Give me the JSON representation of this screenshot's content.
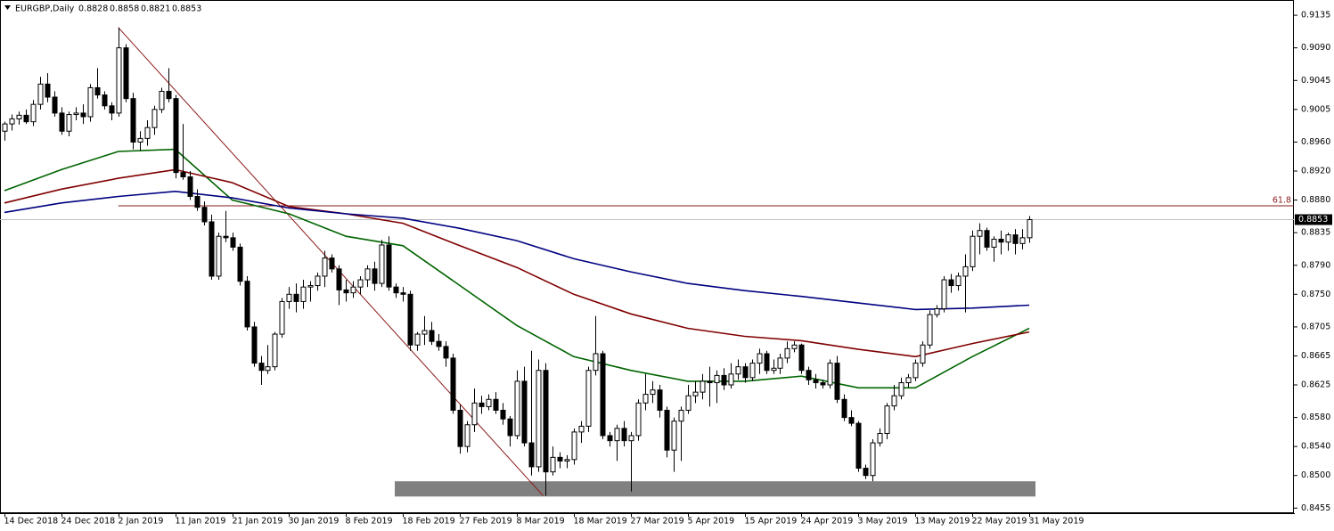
{
  "chart_data": {
    "type": "candlestick",
    "title": "EURGBP,Daily",
    "categories": [
      "14 Dec 2018",
      null,
      null,
      null,
      null,
      null,
      null,
      null,
      "24 Dec 2018",
      null,
      null,
      null,
      null,
      null,
      null,
      null,
      "2 Jan 2019",
      null,
      null,
      null,
      null,
      null,
      null,
      null,
      "11 Jan 2019",
      null,
      null,
      null,
      null,
      null,
      null,
      null,
      "21 Jan 2019",
      null,
      null,
      null,
      null,
      null,
      null,
      null,
      "30 Jan 2019",
      null,
      null,
      null,
      null,
      null,
      null,
      null,
      "8 Feb 2019",
      null,
      null,
      null,
      null,
      null,
      null,
      null,
      "18 Feb 2019",
      null,
      null,
      null,
      null,
      null,
      null,
      null,
      "27 Feb 2019",
      null,
      null,
      null,
      null,
      null,
      null,
      null,
      "8 Mar 2019",
      null,
      null,
      null,
      null,
      null,
      null,
      null,
      "18 Mar 2019",
      null,
      null,
      null,
      null,
      null,
      null,
      null,
      "27 Mar 2019",
      null,
      null,
      null,
      null,
      null,
      null,
      null,
      "5 Apr 2019",
      null,
      null,
      null,
      null,
      null,
      null,
      null,
      "15 Apr 2019",
      null,
      null,
      null,
      null,
      null,
      null,
      null,
      "24 Apr 2019",
      null,
      null,
      null,
      null,
      null,
      null,
      null,
      "3 May 2019",
      null,
      null,
      null,
      null,
      null,
      null,
      null,
      "13 May 2019",
      null,
      null,
      null,
      null,
      null,
      null,
      null,
      "22 May 2019",
      null,
      null,
      null,
      null,
      null,
      null,
      null,
      "31 May 2019"
    ],
    "ohlc": [
      [
        0.8975,
        0.8988,
        0.8962,
        0.8985
      ],
      [
        0.8985,
        0.8998,
        0.8976,
        0.8992
      ],
      [
        0.8992,
        0.9002,
        0.8984,
        0.8997
      ],
      [
        0.8997,
        0.9005,
        0.8985,
        0.8988
      ],
      [
        0.8988,
        0.9018,
        0.8982,
        0.9012
      ],
      [
        0.9012,
        0.905,
        0.9005,
        0.904
      ],
      [
        0.904,
        0.9055,
        0.9015,
        0.9022
      ],
      [
        0.9022,
        0.903,
        0.8995,
        0.9
      ],
      [
        0.9,
        0.9008,
        0.897,
        0.8975
      ],
      [
        0.8975,
        0.9002,
        0.8968,
        0.8998
      ],
      [
        0.8998,
        0.9008,
        0.899,
        0.9
      ],
      [
        0.9,
        0.9012,
        0.8985,
        0.8995
      ],
      [
        0.8995,
        0.904,
        0.8988,
        0.9035
      ],
      [
        0.9035,
        0.9062,
        0.902,
        0.9025
      ],
      [
        0.9025,
        0.903,
        0.9005,
        0.901
      ],
      [
        0.901,
        0.9015,
        0.899,
        0.9
      ],
      [
        0.9,
        0.9118,
        0.8995,
        0.909
      ],
      [
        0.909,
        0.9095,
        0.9015,
        0.902
      ],
      [
        0.902,
        0.9028,
        0.895,
        0.896
      ],
      [
        0.896,
        0.8975,
        0.8948,
        0.8965
      ],
      [
        0.8965,
        0.899,
        0.8955,
        0.898
      ],
      [
        0.898,
        0.901,
        0.897,
        0.9005
      ],
      [
        0.9005,
        0.9035,
        0.9,
        0.903
      ],
      [
        0.903,
        0.9062,
        0.9015,
        0.902
      ],
      [
        0.902,
        0.9025,
        0.891,
        0.8918
      ],
      [
        0.8918,
        0.8985,
        0.8908,
        0.8912
      ],
      [
        0.8912,
        0.892,
        0.888,
        0.8885
      ],
      [
        0.8885,
        0.8895,
        0.8865,
        0.887
      ],
      [
        0.887,
        0.8878,
        0.8845,
        0.885
      ],
      [
        0.885,
        0.886,
        0.877,
        0.8775
      ],
      [
        0.8775,
        0.8835,
        0.877,
        0.883
      ],
      [
        0.883,
        0.8865,
        0.8822,
        0.8828
      ],
      [
        0.8828,
        0.8835,
        0.881,
        0.8815
      ],
      [
        0.8815,
        0.882,
        0.8762,
        0.8768
      ],
      [
        0.8768,
        0.8775,
        0.87,
        0.8705
      ],
      [
        0.8705,
        0.8712,
        0.865,
        0.8655
      ],
      [
        0.8655,
        0.8665,
        0.8625,
        0.8645
      ],
      [
        0.8645,
        0.868,
        0.864,
        0.865
      ],
      [
        0.865,
        0.8698,
        0.8645,
        0.8695
      ],
      [
        0.8695,
        0.8745,
        0.869,
        0.874
      ],
      [
        0.874,
        0.876,
        0.873,
        0.875
      ],
      [
        0.875,
        0.8765,
        0.8725,
        0.874
      ],
      [
        0.874,
        0.877,
        0.873,
        0.876
      ],
      [
        0.876,
        0.8768,
        0.874,
        0.8762
      ],
      [
        0.8762,
        0.878,
        0.8755,
        0.8775
      ],
      [
        0.8775,
        0.881,
        0.876,
        0.88
      ],
      [
        0.88,
        0.8805,
        0.878,
        0.8785
      ],
      [
        0.8785,
        0.879,
        0.8735,
        0.8756
      ],
      [
        0.8756,
        0.877,
        0.874,
        0.8752
      ],
      [
        0.8752,
        0.8768,
        0.8745,
        0.876
      ],
      [
        0.876,
        0.8775,
        0.875,
        0.877
      ],
      [
        0.877,
        0.879,
        0.876,
        0.8785
      ],
      [
        0.8785,
        0.8795,
        0.8755,
        0.8765
      ],
      [
        0.8765,
        0.8825,
        0.876,
        0.8818
      ],
      [
        0.8818,
        0.883,
        0.8755,
        0.876
      ],
      [
        0.876,
        0.8765,
        0.8745,
        0.8752
      ],
      [
        0.8752,
        0.876,
        0.874,
        0.875
      ],
      [
        0.875,
        0.8755,
        0.8672,
        0.868
      ],
      [
        0.868,
        0.8698,
        0.8672,
        0.8695
      ],
      [
        0.8695,
        0.872,
        0.868,
        0.87
      ],
      [
        0.87,
        0.8712,
        0.868,
        0.8685
      ],
      [
        0.8685,
        0.8695,
        0.8672,
        0.8678
      ],
      [
        0.8678,
        0.8685,
        0.865,
        0.8662
      ],
      [
        0.8662,
        0.8668,
        0.8585,
        0.859
      ],
      [
        0.859,
        0.8598,
        0.853,
        0.854
      ],
      [
        0.854,
        0.8575,
        0.8532,
        0.857
      ],
      [
        0.857,
        0.862,
        0.856,
        0.86
      ],
      [
        0.86,
        0.861,
        0.8585,
        0.8595
      ],
      [
        0.8595,
        0.8612,
        0.859,
        0.8605
      ],
      [
        0.8605,
        0.8615,
        0.8585,
        0.859
      ],
      [
        0.859,
        0.86,
        0.857,
        0.8578
      ],
      [
        0.8578,
        0.8582,
        0.854,
        0.8555
      ],
      [
        0.8555,
        0.8645,
        0.855,
        0.863
      ],
      [
        0.863,
        0.865,
        0.854,
        0.8545
      ],
      [
        0.8545,
        0.8672,
        0.85,
        0.8512
      ],
      [
        0.8512,
        0.866,
        0.8505,
        0.8645
      ],
      [
        0.8645,
        0.8655,
        0.8472,
        0.8505
      ],
      [
        0.8505,
        0.854,
        0.85,
        0.8525
      ],
      [
        0.8525,
        0.8532,
        0.851,
        0.852
      ],
      [
        0.852,
        0.8528,
        0.851,
        0.8522
      ],
      [
        0.8522,
        0.8565,
        0.8515,
        0.856
      ],
      [
        0.856,
        0.8575,
        0.8545,
        0.8568
      ],
      [
        0.8568,
        0.865,
        0.856,
        0.8645
      ],
      [
        0.8645,
        0.872,
        0.8638,
        0.8668
      ],
      [
        0.8668,
        0.8672,
        0.855,
        0.8555
      ],
      [
        0.8555,
        0.856,
        0.854,
        0.8548
      ],
      [
        0.8548,
        0.857,
        0.852,
        0.8565
      ],
      [
        0.8565,
        0.8575,
        0.854,
        0.8548
      ],
      [
        0.8548,
        0.856,
        0.8478,
        0.8555
      ],
      [
        0.8555,
        0.8605,
        0.8548,
        0.86
      ],
      [
        0.86,
        0.864,
        0.859,
        0.8612
      ],
      [
        0.8612,
        0.863,
        0.86,
        0.8618
      ],
      [
        0.8618,
        0.8625,
        0.858,
        0.859
      ],
      [
        0.859,
        0.8595,
        0.8525,
        0.8535
      ],
      [
        0.8535,
        0.858,
        0.8505,
        0.8575
      ],
      [
        0.8575,
        0.8595,
        0.852,
        0.859
      ],
      [
        0.859,
        0.8625,
        0.8585,
        0.861
      ],
      [
        0.861,
        0.863,
        0.86,
        0.8615
      ],
      [
        0.8615,
        0.864,
        0.8605,
        0.863
      ],
      [
        0.863,
        0.865,
        0.8595,
        0.8628
      ],
      [
        0.8628,
        0.8645,
        0.86,
        0.8638
      ],
      [
        0.8638,
        0.8648,
        0.8618,
        0.8625
      ],
      [
        0.8625,
        0.8655,
        0.862,
        0.864
      ],
      [
        0.864,
        0.866,
        0.8632,
        0.865
      ],
      [
        0.865,
        0.8655,
        0.8628,
        0.8635
      ],
      [
        0.8635,
        0.866,
        0.863,
        0.8655
      ],
      [
        0.8655,
        0.8675,
        0.864,
        0.8668
      ],
      [
        0.8668,
        0.8672,
        0.864,
        0.8645
      ],
      [
        0.8645,
        0.866,
        0.864,
        0.8648
      ],
      [
        0.8648,
        0.8668,
        0.864,
        0.8662
      ],
      [
        0.8662,
        0.8685,
        0.8655,
        0.8675
      ],
      [
        0.8675,
        0.8685,
        0.867,
        0.868
      ],
      [
        0.868,
        0.8682,
        0.864,
        0.8645
      ],
      [
        0.8645,
        0.865,
        0.8625,
        0.8632
      ],
      [
        0.8632,
        0.864,
        0.862,
        0.8628
      ],
      [
        0.8628,
        0.8632,
        0.862,
        0.8625
      ],
      [
        0.8625,
        0.866,
        0.862,
        0.8655
      ],
      [
        0.8655,
        0.8665,
        0.86,
        0.8605
      ],
      [
        0.8605,
        0.8612,
        0.8575,
        0.858
      ],
      [
        0.858,
        0.859,
        0.8568,
        0.8572
      ],
      [
        0.8572,
        0.8575,
        0.8505,
        0.851
      ],
      [
        0.851,
        0.8515,
        0.8495,
        0.85
      ],
      [
        0.85,
        0.855,
        0.8492,
        0.8545
      ],
      [
        0.8545,
        0.8565,
        0.854,
        0.8558
      ],
      [
        0.8558,
        0.86,
        0.855,
        0.8596
      ],
      [
        0.8596,
        0.8625,
        0.859,
        0.861
      ],
      [
        0.861,
        0.8635,
        0.8605,
        0.8628
      ],
      [
        0.8628,
        0.864,
        0.8622,
        0.8635
      ],
      [
        0.8635,
        0.866,
        0.863,
        0.8655
      ],
      [
        0.8655,
        0.8685,
        0.865,
        0.868
      ],
      [
        0.868,
        0.8728,
        0.8675,
        0.8722
      ],
      [
        0.8722,
        0.8735,
        0.8718,
        0.873
      ],
      [
        0.873,
        0.8775,
        0.8725,
        0.877
      ],
      [
        0.877,
        0.8778,
        0.8752,
        0.8762
      ],
      [
        0.8762,
        0.878,
        0.8755,
        0.8775
      ],
      [
        0.8775,
        0.8805,
        0.8725,
        0.8788
      ],
      [
        0.8788,
        0.8838,
        0.8782,
        0.883
      ],
      [
        0.883,
        0.8848,
        0.8805,
        0.8838
      ],
      [
        0.8838,
        0.8842,
        0.881,
        0.8815
      ],
      [
        0.8815,
        0.883,
        0.8795,
        0.8826
      ],
      [
        0.8826,
        0.8838,
        0.8805,
        0.8822
      ],
      [
        0.8822,
        0.8835,
        0.881,
        0.8832
      ],
      [
        0.8832,
        0.884,
        0.8805,
        0.882
      ],
      [
        0.882,
        0.884,
        0.8812,
        0.8828
      ],
      [
        0.8828,
        0.8858,
        0.8821,
        0.8853
      ]
    ],
    "bull_color": "#ffffff",
    "bear_color": "#000000",
    "overlays": [
      {
        "color": "#006400",
        "x": [
          "14 Dec 2018",
          "24 Dec 2018",
          "2 Jan 2019",
          "11 Jan 2019",
          "21 Jan 2019",
          "30 Jan 2019",
          "8 Feb 2019",
          "18 Feb 2019",
          "27 Feb 2019",
          "8 Mar 2019",
          "18 Mar 2019",
          "27 Mar 2019",
          "5 Apr 2019",
          "15 Apr 2019",
          "24 Apr 2019",
          "3 May 2019",
          "13 May 2019",
          "22 May 2019",
          "31 May 2019"
        ],
        "values": [
          0.8893,
          0.8922,
          0.8947,
          0.895,
          0.888,
          0.8861,
          0.883,
          0.8817,
          0.8762,
          0.8707,
          0.8664,
          0.8645,
          0.863,
          0.863,
          0.8637,
          0.8621,
          0.8621,
          0.8664,
          0.8703
        ]
      },
      {
        "color": "#800000",
        "x": [
          "14 Dec 2018",
          "24 Dec 2018",
          "2 Jan 2019",
          "11 Jan 2019",
          "21 Jan 2019",
          "30 Jan 2019",
          "8 Feb 2019",
          "18 Feb 2019",
          "27 Feb 2019",
          "8 Mar 2019",
          "18 Mar 2019",
          "27 Mar 2019",
          "5 Apr 2019",
          "15 Apr 2019",
          "24 Apr 2019",
          "3 May 2019",
          "13 May 2019",
          "22 May 2019",
          "31 May 2019"
        ],
        "values": [
          0.8876,
          0.8895,
          0.891,
          0.8922,
          0.8904,
          0.8871,
          0.8861,
          0.8848,
          0.8817,
          0.8787,
          0.875,
          0.8723,
          0.8703,
          0.8692,
          0.8686,
          0.8674,
          0.8664,
          0.8682,
          0.8698
        ]
      },
      {
        "color": "#000080",
        "x": [
          "14 Dec 2018",
          "24 Dec 2018",
          "2 Jan 2019",
          "11 Jan 2019",
          "21 Jan 2019",
          "30 Jan 2019",
          "8 Feb 2019",
          "18 Feb 2019",
          "27 Feb 2019",
          "8 Mar 2019",
          "18 Mar 2019",
          "27 Mar 2019",
          "5 Apr 2019",
          "15 Apr 2019",
          "24 Apr 2019",
          "3 May 2019",
          "13 May 2019",
          "22 May 2019",
          "31 May 2019"
        ],
        "values": [
          0.8863,
          0.8876,
          0.8885,
          0.8892,
          0.8883,
          0.8869,
          0.8861,
          0.8855,
          0.8841,
          0.8824,
          0.8799,
          0.8781,
          0.8765,
          0.8755,
          0.8747,
          0.8738,
          0.8729,
          0.8731,
          0.8735
        ]
      }
    ],
    "level_line": {
      "label": "61.8",
      "value": 0.8872,
      "color": "#8b1a1a"
    },
    "trendline": {
      "start": 0.9118,
      "end": 0.8472,
      "color": "#8b1a1a"
    },
    "zone": {
      "top": 0.8492,
      "bottom": 0.8471,
      "color": "#808080"
    },
    "ylim": [
      0.8448,
      0.9156
    ],
    "yticks": [
      0.9135,
      {
        "value": 0.909,
        "label": "0.9090"
      },
      0.9045,
      0.9005,
      {
        "value": 0.896,
        "label": "0.8960"
      },
      {
        "value": 0.892,
        "label": "0.8920"
      },
      {
        "value": 0.888,
        "label": "0.8880"
      },
      0.8835,
      {
        "value": 0.879,
        "label": "0.8790"
      },
      {
        "value": 0.875,
        "label": "0.8750"
      },
      0.8705,
      0.8665,
      0.8625,
      {
        "value": 0.858,
        "label": "0.8580"
      },
      {
        "value": 0.854,
        "label": "0.8540"
      },
      {
        "value": 0.85,
        "label": "0.8500"
      },
      0.8455
    ]
  }
}
